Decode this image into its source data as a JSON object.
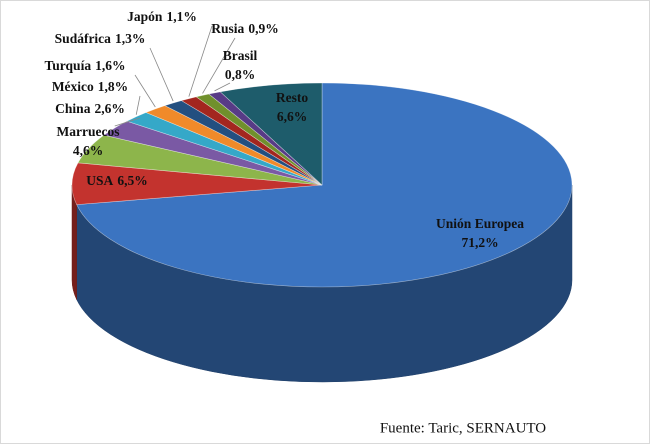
{
  "chart_data": {
    "type": "pie3d",
    "categories": [
      "Unión Europea",
      "USA",
      "Marruecos",
      "China",
      "México",
      "Turquía",
      "Sudáfrica",
      "Japón",
      "Rusia",
      "Brasil",
      "Resto"
    ],
    "values": [
      71.2,
      6.5,
      4.6,
      2.6,
      1.8,
      1.6,
      1.3,
      1.1,
      0.9,
      0.8,
      6.6
    ],
    "value_labels": [
      "71,2%",
      "6,5%",
      "4,6%",
      "2,6%",
      "1,8%",
      "1,6%",
      "1,3%",
      "1,1%",
      "0,9%",
      "0,8%",
      "6,6%"
    ],
    "colors": [
      "#3b74c1",
      "#c3332e",
      "#8db54b",
      "#7a59a4",
      "#35a8c8",
      "#f08a2a",
      "#234f80",
      "#a3261f",
      "#70902c",
      "#583b86",
      "#1e5c6b"
    ],
    "source": "Fuente: Taric, SERNAUTO"
  }
}
